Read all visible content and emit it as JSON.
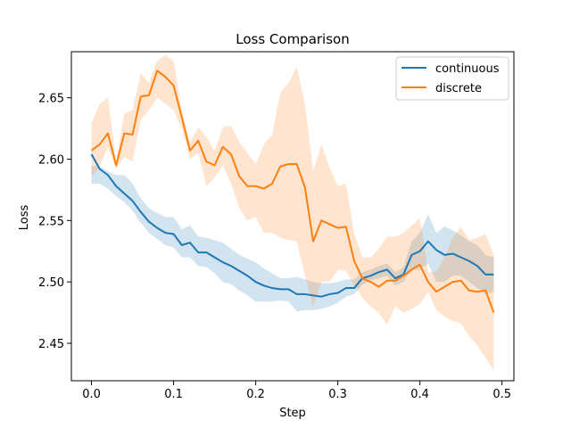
{
  "chart_data": {
    "type": "line",
    "title": "Loss Comparison",
    "xlabel": "Step",
    "ylabel": "Loss",
    "xlim": [
      -0.0245,
      0.5145
    ],
    "ylim": [
      2.4195,
      2.6875
    ],
    "x_ticks": [
      0.0,
      0.1,
      0.2,
      0.3,
      0.4,
      0.5
    ],
    "x_tick_labels": [
      "0.0",
      "0.1",
      "0.2",
      "0.3",
      "0.4",
      "0.5"
    ],
    "y_ticks": [
      2.45,
      2.5,
      2.55,
      2.6,
      2.65
    ],
    "y_tick_labels": [
      "2.45",
      "2.50",
      "2.55",
      "2.60",
      "2.65"
    ],
    "grid": false,
    "legend_position": "top-right",
    "x": [
      0.0,
      0.01,
      0.02,
      0.03,
      0.04,
      0.05,
      0.06,
      0.07,
      0.08,
      0.09,
      0.1,
      0.11,
      0.12,
      0.13,
      0.14,
      0.15,
      0.16,
      0.17,
      0.18,
      0.19,
      0.2,
      0.21,
      0.22,
      0.23,
      0.24,
      0.25,
      0.26,
      0.27,
      0.28,
      0.29,
      0.3,
      0.31,
      0.32,
      0.33,
      0.34,
      0.35,
      0.36,
      0.37,
      0.38,
      0.39,
      0.4,
      0.41,
      0.42,
      0.43,
      0.44,
      0.45,
      0.46,
      0.47,
      0.48,
      0.49
    ],
    "series": [
      {
        "name": "continuous",
        "color": "#1f77b4",
        "values": [
          2.604,
          2.592,
          2.587,
          2.578,
          2.572,
          2.566,
          2.557,
          2.549,
          2.544,
          2.54,
          2.539,
          2.53,
          2.532,
          2.524,
          2.524,
          2.52,
          2.516,
          2.513,
          2.509,
          2.505,
          2.5,
          2.497,
          2.495,
          2.494,
          2.494,
          2.49,
          2.49,
          2.489,
          2.488,
          2.49,
          2.491,
          2.495,
          2.495,
          2.503,
          2.505,
          2.508,
          2.51,
          2.503,
          2.506,
          2.522,
          2.525,
          2.533,
          2.526,
          2.522,
          2.523,
          2.52,
          2.517,
          2.513,
          2.506,
          2.506
        ],
        "lower": [
          2.58,
          2.58,
          2.576,
          2.57,
          2.565,
          2.558,
          2.548,
          2.54,
          2.535,
          2.53,
          2.528,
          2.52,
          2.52,
          2.513,
          2.512,
          2.507,
          2.5,
          2.498,
          2.493,
          2.489,
          2.484,
          2.484,
          2.484,
          2.485,
          2.484,
          2.476,
          2.477,
          2.477,
          2.478,
          2.48,
          2.483,
          2.488,
          2.49,
          2.498,
          2.501,
          2.503,
          2.505,
          2.497,
          2.5,
          2.51,
          2.51,
          2.515,
          2.5,
          2.5,
          2.505,
          2.505,
          2.5,
          2.495,
          2.49,
          2.492
        ],
        "upper": [
          2.595,
          2.594,
          2.59,
          2.587,
          2.587,
          2.58,
          2.568,
          2.56,
          2.556,
          2.553,
          2.553,
          2.543,
          2.546,
          2.537,
          2.536,
          2.534,
          2.532,
          2.527,
          2.522,
          2.519,
          2.516,
          2.511,
          2.507,
          2.503,
          2.503,
          2.504,
          2.502,
          2.5,
          2.499,
          2.499,
          2.5,
          2.502,
          2.502,
          2.508,
          2.51,
          2.513,
          2.515,
          2.508,
          2.512,
          2.533,
          2.54,
          2.555,
          2.54,
          2.545,
          2.542,
          2.538,
          2.533,
          2.53,
          2.522,
          2.52
        ]
      },
      {
        "name": "discrete",
        "color": "#ff7f0e",
        "values": [
          2.607,
          2.612,
          2.621,
          2.595,
          2.621,
          2.62,
          2.651,
          2.652,
          2.672,
          2.667,
          2.66,
          2.634,
          2.607,
          2.615,
          2.598,
          2.595,
          2.61,
          2.604,
          2.586,
          2.578,
          2.578,
          2.576,
          2.58,
          2.594,
          2.596,
          2.596,
          2.577,
          2.533,
          2.55,
          2.547,
          2.544,
          2.545,
          2.517,
          2.503,
          2.5,
          2.496,
          2.501,
          2.501,
          2.505,
          2.51,
          2.514,
          2.5,
          2.492,
          2.496,
          2.5,
          2.501,
          2.493,
          2.492,
          2.493,
          2.475
        ],
        "lower": [
          2.585,
          2.594,
          2.61,
          2.592,
          2.602,
          2.598,
          2.632,
          2.64,
          2.65,
          2.645,
          2.64,
          2.625,
          2.6,
          2.605,
          2.578,
          2.585,
          2.595,
          2.58,
          2.56,
          2.55,
          2.553,
          2.54,
          2.54,
          2.536,
          2.534,
          2.533,
          2.505,
          2.48,
          2.5,
          2.5,
          2.51,
          2.509,
          2.497,
          2.487,
          2.48,
          2.475,
          2.465,
          2.48,
          2.475,
          2.478,
          2.482,
          2.492,
          2.477,
          2.472,
          2.468,
          2.466,
          2.456,
          2.448,
          2.438,
          2.428
        ],
        "upper": [
          2.63,
          2.645,
          2.65,
          2.598,
          2.637,
          2.64,
          2.67,
          2.662,
          2.68,
          2.685,
          2.68,
          2.64,
          2.614,
          2.626,
          2.618,
          2.607,
          2.626,
          2.627,
          2.614,
          2.605,
          2.596,
          2.612,
          2.62,
          2.654,
          2.662,
          2.675,
          2.645,
          2.59,
          2.612,
          2.593,
          2.578,
          2.58,
          2.539,
          2.52,
          2.52,
          2.527,
          2.537,
          2.537,
          2.54,
          2.546,
          2.552,
          2.508,
          2.508,
          2.52,
          2.536,
          2.545,
          2.534,
          2.536,
          2.539,
          2.522
        ]
      }
    ]
  }
}
